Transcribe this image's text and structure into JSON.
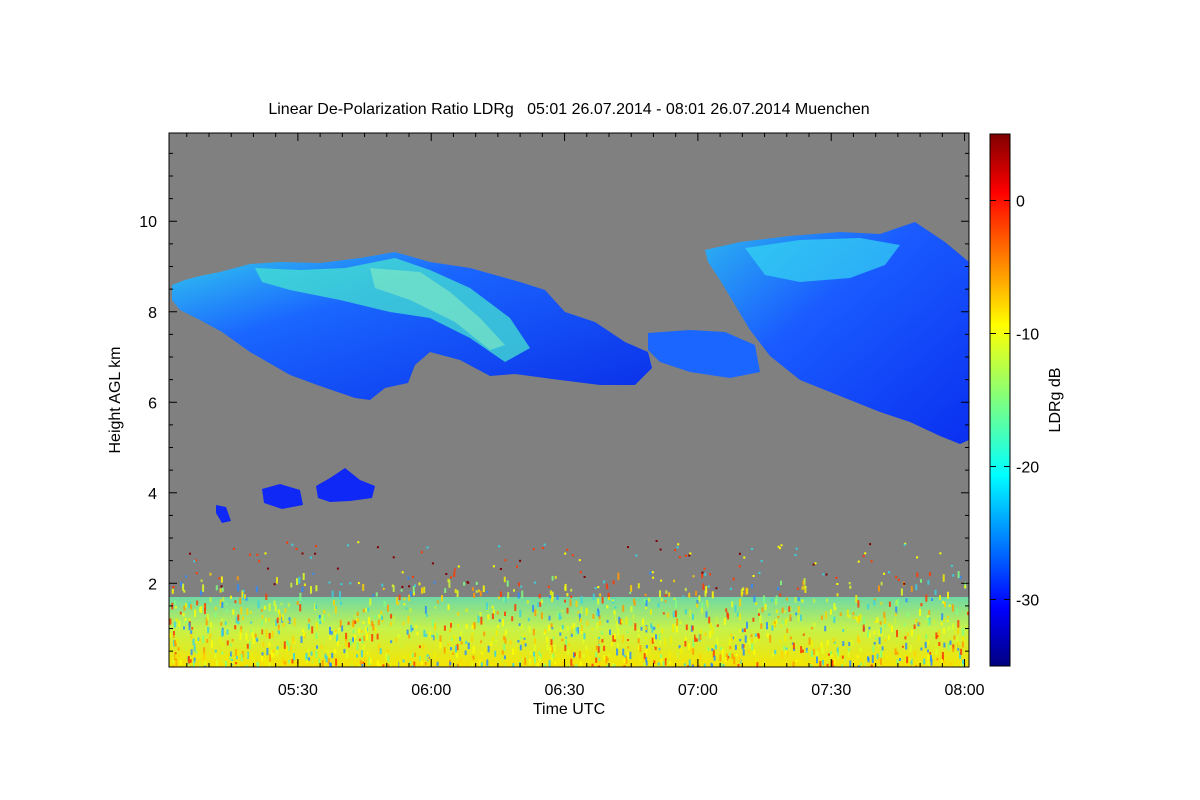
{
  "chart_data": {
    "type": "heatmap",
    "title": "Linear De-Polarization Ratio LDRg   05:01 26.07.2014 - 08:01 26.07.2014 Muenchen",
    "xlabel": "Time UTC",
    "ylabel": "Height AGL km",
    "x_range": [
      "05:01",
      "08:01"
    ],
    "y_range_km": [
      0.15,
      11.95
    ],
    "x_ticks": [
      "05:30",
      "06:00",
      "06:30",
      "07:00",
      "07:30",
      "08:00"
    ],
    "y_ticks": [
      "2",
      "4",
      "6",
      "8",
      "10"
    ],
    "background_color": "#808080",
    "colorbar": {
      "label": "LDRg dB",
      "range": [
        -35,
        5
      ],
      "ticks": [
        "0",
        "-10",
        "-20",
        "-30"
      ],
      "colormap": "jet"
    },
    "features": [
      {
        "description": "cirrus band",
        "time": [
          "05:01",
          "06:53"
        ],
        "height_km": [
          6.0,
          9.4
        ],
        "ldr_db": [
          -30,
          -20
        ]
      },
      {
        "description": "cirrus band",
        "time": [
          "06:52",
          "08:01"
        ],
        "height_km": [
          5.2,
          10.0
        ],
        "ldr_db": [
          -30,
          -22
        ]
      },
      {
        "description": "mid-level cloud patches",
        "time": [
          "05:18",
          "05:47"
        ],
        "height_km": [
          3.4,
          4.6
        ],
        "ldr_db": [
          -32,
          -28
        ]
      },
      {
        "description": "boundary layer / noise",
        "time": [
          "05:01",
          "08:01"
        ],
        "height_km": [
          0.15,
          2.3
        ],
        "ldr_db": [
          -20,
          0
        ]
      }
    ]
  }
}
